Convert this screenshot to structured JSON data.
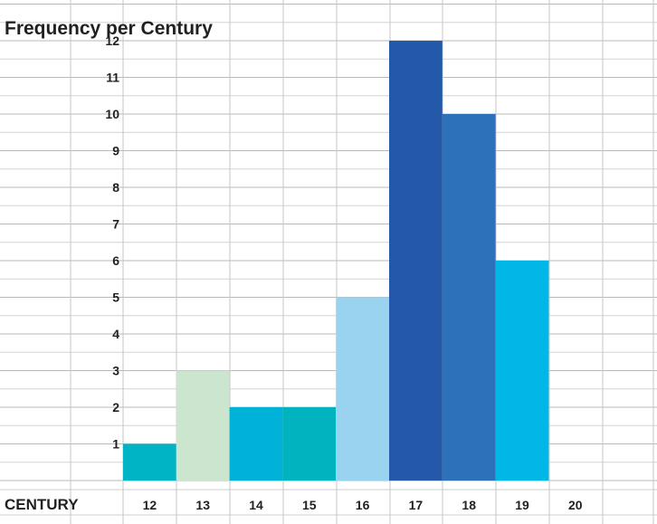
{
  "chart_data": {
    "type": "bar",
    "title": "Frequency per Century",
    "xlabel": "CENTURY",
    "ylabel": "",
    "categories": [
      "12",
      "13",
      "14",
      "15",
      "16",
      "17",
      "18",
      "19",
      "20"
    ],
    "values": [
      1,
      3,
      2,
      2,
      5,
      12,
      10,
      6,
      0
    ],
    "colors": [
      "#00b4c5",
      "#cce5cf",
      "#00b2d8",
      "#00b3bf",
      "#99d3f0",
      "#2458a8",
      "#2c71ba",
      "#00b7e8",
      "#ffffff"
    ],
    "yticks": [
      "1",
      "2",
      "3",
      "4",
      "5",
      "6",
      "7",
      "8",
      "9",
      "10",
      "11",
      "12"
    ],
    "ylim": [
      0,
      12
    ],
    "grid": true,
    "legend": "none"
  }
}
